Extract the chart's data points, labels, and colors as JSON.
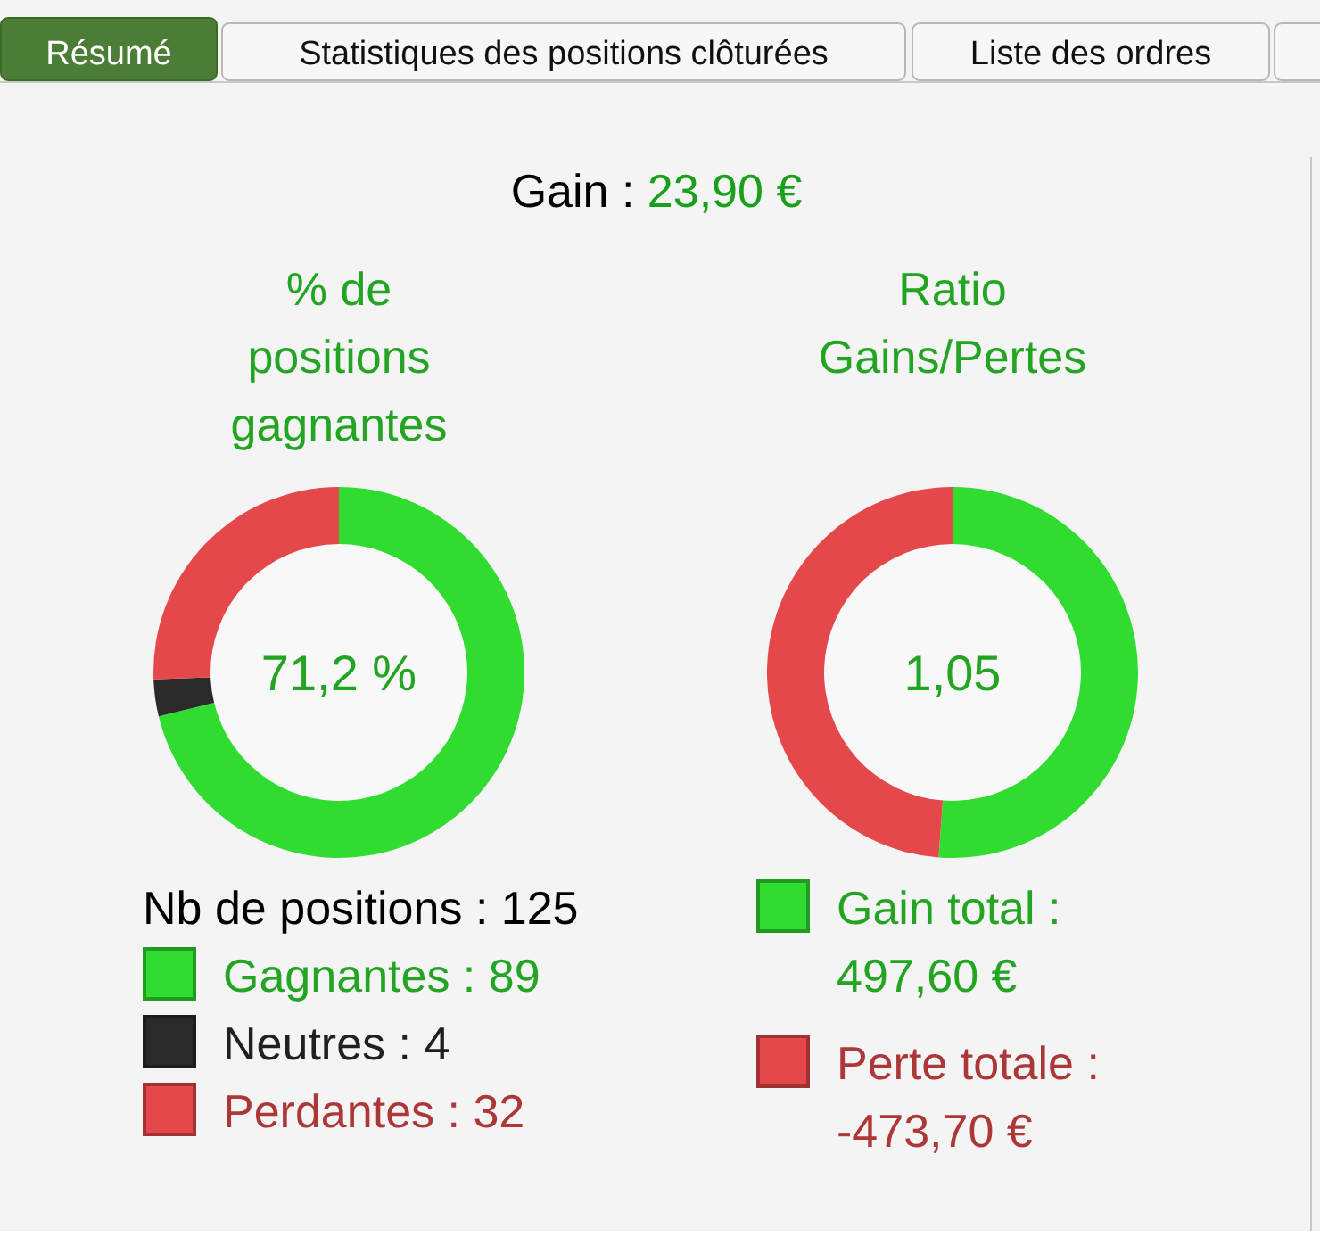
{
  "chart_data": [
    {
      "type": "other",
      "title": "Gain : 23,90 €",
      "annotations": [
        "Résumé",
        "Statistiques des positions clôturées",
        "Liste des ordres"
      ]
    },
    {
      "type": "donut",
      "title": "% de positions gagnantes",
      "categories": [
        "Gagnantes : 89",
        "Neutres : 4",
        "Perdantes : 32"
      ],
      "values": [
        71.2,
        3.2,
        25.6
      ],
      "colors": [
        "#2fdc2f",
        "#2a2a2a",
        "#e5484a"
      ],
      "legend": "bottom",
      "legend_title": "Nb de positions : 125",
      "annotations": [
        "71,2 %"
      ]
    },
    {
      "type": "donut",
      "title": "Ratio Gains/Pertes",
      "categories": [
        "Gain total : 497,60 €",
        "Perte totale : -473,70 €"
      ],
      "values": [
        51.2,
        48.8
      ],
      "colors": [
        "#2fdc2f",
        "#e5484a"
      ],
      "legend": "bottom",
      "annotations": [
        "1,05"
      ]
    }
  ]
}
